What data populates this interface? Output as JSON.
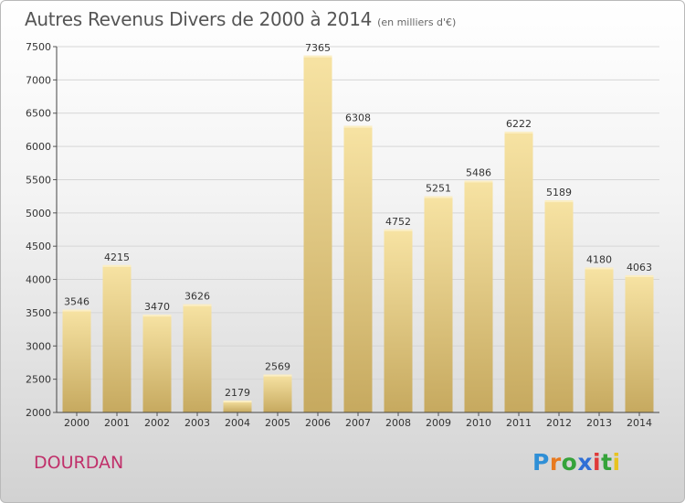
{
  "header": {
    "title": "Autres Revenus Divers de 2000 à 2014",
    "subtitle": "(en milliers d'€)"
  },
  "footer": {
    "city": "DOURDAN",
    "logo": {
      "letters": [
        "P",
        "r",
        "o",
        "x",
        "i",
        "t",
        "i"
      ],
      "colors": [
        "#2f8fd6",
        "#e87a1f",
        "#35a33a",
        "#2f6fd6",
        "#e03a3a",
        "#35a33a",
        "#e8c31f"
      ]
    }
  },
  "colors": {
    "bar_light": "#f7e3a3",
    "bar_dark": "#c6a95f",
    "city": "#c0306a"
  },
  "chart_data": {
    "type": "bar",
    "title": "Autres Revenus Divers de 2000 à 2014",
    "xlabel": "",
    "ylabel": "",
    "categories": [
      "2000",
      "2001",
      "2002",
      "2003",
      "2004",
      "2005",
      "2006",
      "2007",
      "2008",
      "2009",
      "2010",
      "2011",
      "2012",
      "2013",
      "2014"
    ],
    "values": [
      3546,
      4215,
      3470,
      3626,
      2179,
      2569,
      7365,
      6308,
      4752,
      5251,
      5486,
      6222,
      5189,
      4180,
      4063
    ],
    "ylim": [
      2000,
      7500
    ],
    "yticks": [
      2000,
      2500,
      3000,
      3500,
      4000,
      4500,
      5000,
      5500,
      6000,
      6500,
      7000,
      7500
    ],
    "grid": true
  }
}
